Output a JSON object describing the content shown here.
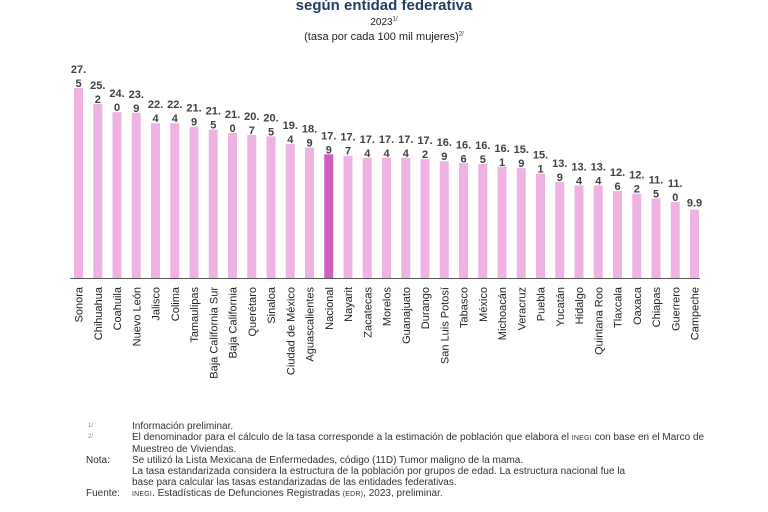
{
  "header": {
    "title": "según entidad federativa",
    "year": "2023",
    "year_mark": "1/",
    "unit": "(tasa por cada 100 mil mujeres)",
    "unit_mark": "2/"
  },
  "chart_data": {
    "type": "bar",
    "title": "según entidad federativa",
    "subtitle": "2023 (tasa por cada 100 mil mujeres)",
    "xlabel": "",
    "ylabel": "",
    "ylim": [
      0,
      27.5
    ],
    "grid": false,
    "legend": "none",
    "highlight_category": "Nacional",
    "colors": {
      "default": "#efb3e3",
      "highlight": "#d05ec4",
      "axis": "#555555",
      "label": "#404040"
    },
    "categories": [
      "Sonora",
      "Chihuahua",
      "Coahuila",
      "Nuevo León",
      "Jalisco",
      "Colima",
      "Tamaulipas",
      "Baja California Sur",
      "Baja California",
      "Querétaro",
      "Sinaloa",
      "Ciudad de México",
      "Aguascalientes",
      "Nacional",
      "Nayarit",
      "Zacatecas",
      "Morelos",
      "Guanajuato",
      "Durango",
      "San Luis Potosí",
      "Tabasco",
      "México",
      "Michoacán",
      "Veracruz",
      "Puebla",
      "Yucatán",
      "Hidalgo",
      "Quintana Roo",
      "Tlaxcala",
      "Oaxaca",
      "Chiapas",
      "Guerrero",
      "Campeche"
    ],
    "values": [
      27.5,
      25.2,
      24.0,
      23.9,
      22.4,
      22.4,
      21.9,
      21.5,
      21.0,
      20.7,
      20.5,
      19.4,
      18.9,
      17.9,
      17.7,
      17.4,
      17.4,
      17.4,
      17.2,
      16.9,
      16.6,
      16.5,
      16.1,
      15.9,
      15.1,
      13.9,
      13.4,
      13.4,
      12.6,
      12.2,
      11.5,
      11.0,
      9.9
    ],
    "data_labels": [
      "27.5",
      "25.2",
      "24.0",
      "23.9",
      "22.4",
      "22.4",
      "21.9",
      "21.5",
      "21.0",
      "20.7",
      "20.5",
      "19.4",
      "18.9",
      "17.9",
      "17.7",
      "17.4",
      "17.4",
      "17.4",
      "17.2",
      "16.9",
      "16.6",
      "16.5",
      "16.1",
      "15.9",
      "15.1",
      "13.9",
      "13.4",
      "13.4",
      "12.6",
      "12.2",
      "11.5",
      "11.0",
      "9.9"
    ]
  },
  "footnotes": [
    {
      "key": "1/",
      "text": "Información preliminar."
    },
    {
      "key": "2/",
      "text_parts": [
        "El denominador para el cálculo de la tasa corresponde a la estimación de población que elabora el ",
        "INEGI",
        " con base en el Marco de Muestreo de Viviendas."
      ]
    },
    {
      "key": "Nota:",
      "lines": [
        "Se utilizó la Lista Mexicana de Enfermedades, código (11D) Tumor maligno de la mama.",
        "La tasa estandarizada considera la estructura de la población por grupos de edad. La estructura nacional fue la",
        "base para calcular las tasas estandarizadas de las entidades federativas."
      ]
    },
    {
      "key": "Fuente:",
      "text_parts": [
        "INEGI",
        ". Estadísticas de Defunciones Registradas ",
        "(EDR)",
        ", 2023, preliminar."
      ]
    }
  ]
}
